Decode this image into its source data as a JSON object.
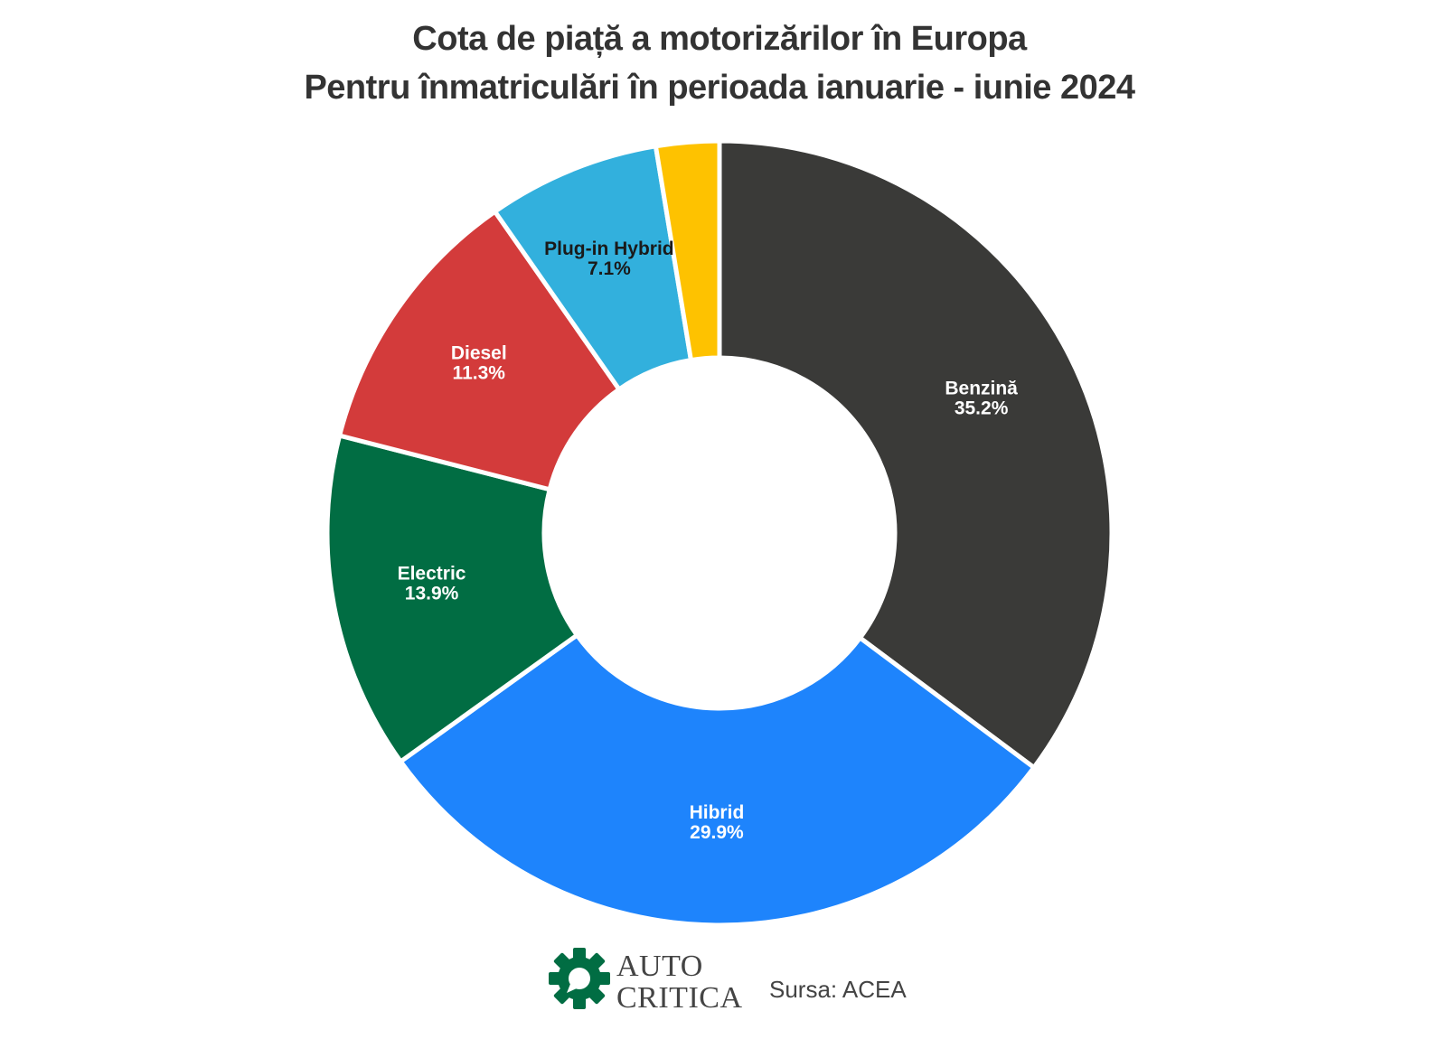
{
  "chart_data": {
    "type": "pie",
    "variant": "donut",
    "title": "Cota de piață a motorizărilor în Europa",
    "subtitle": "Pentru înmatriculări în perioada ianuarie - iunie 2024",
    "slices": [
      {
        "label": "Benzină",
        "value": 35.2,
        "value_label": "35.2%",
        "color": "#3a3a38",
        "text_color": "#ffffff"
      },
      {
        "label": "Hibrid",
        "value": 29.9,
        "value_label": "29.9%",
        "color": "#1e84fc",
        "text_color": "#ffffff"
      },
      {
        "label": "Electric",
        "value": 13.9,
        "value_label": "13.9%",
        "color": "#016d43",
        "text_color": "#ffffff"
      },
      {
        "label": "Diesel",
        "value": 11.3,
        "value_label": "11.3%",
        "color": "#d33b3b",
        "text_color": "#ffffff"
      },
      {
        "label": "Plug-in Hybrid",
        "value": 7.1,
        "value_label": "7.1%",
        "color": "#32b0dd",
        "text_color": "#1a1a1a"
      },
      {
        "label": "",
        "value": 2.6,
        "value_label": "",
        "color": "#fec200",
        "text_color": "#1a1a1a"
      }
    ]
  },
  "footer": {
    "logo_line1": "AUTO",
    "logo_line2": "CRITICA",
    "logo_color": "#016d43",
    "source": "Sursa: ACEA"
  }
}
